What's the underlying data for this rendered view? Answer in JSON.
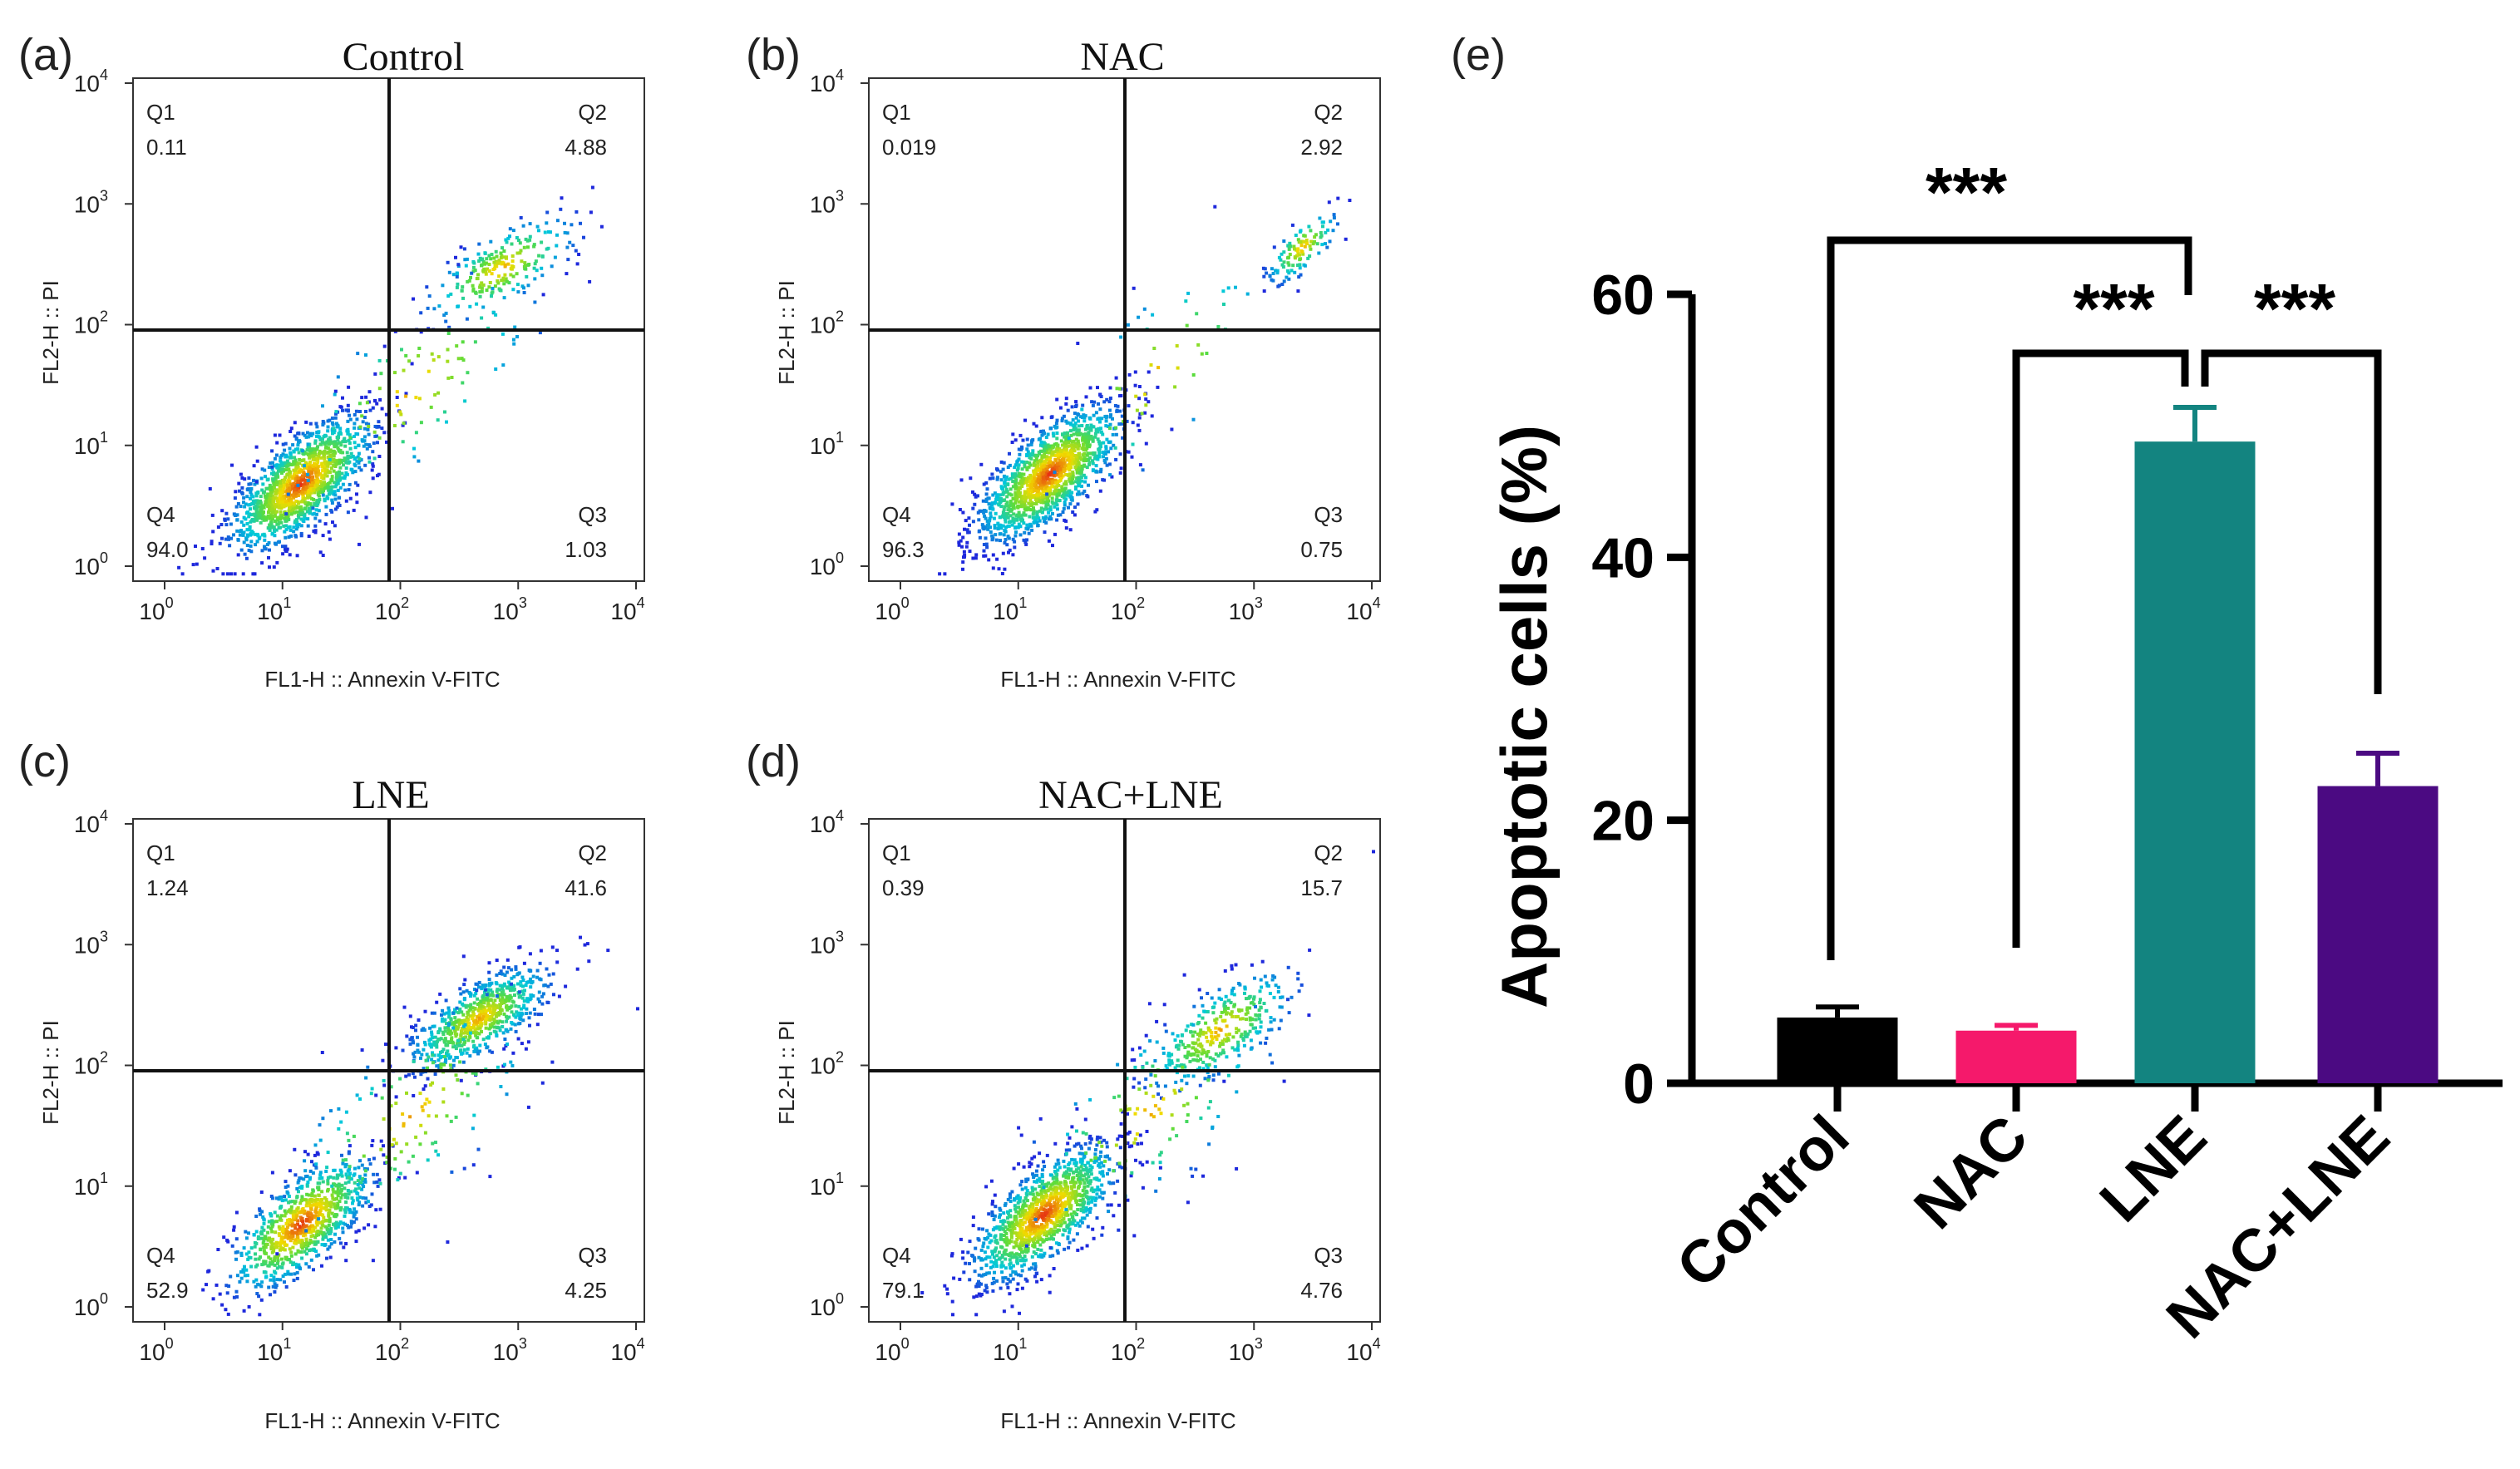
{
  "chart_data": [
    {
      "type": "scatter",
      "panel_label": "(a)",
      "title": "Control",
      "xlabel": "FL1-H :: Annexin V-FITC",
      "ylabel": "FL2-H :: PI",
      "scale": "log10",
      "xlim": [
        1,
        10000
      ],
      "ylim": [
        1,
        10000
      ],
      "gate": {
        "x": 100,
        "y": 100
      },
      "quadrants": [
        {
          "name": "Q1",
          "value": "0.11"
        },
        {
          "name": "Q2",
          "value": "4.88"
        },
        {
          "name": "Q3",
          "value": "1.03"
        },
        {
          "name": "Q4",
          "value": "94.0"
        }
      ],
      "populations": [
        {
          "cx": 14,
          "cy": 5,
          "sx": 0.3,
          "sy": 0.28,
          "n": 1400
        },
        {
          "cx": 700,
          "cy": 300,
          "sx": 0.32,
          "sy": 0.22,
          "n": 240
        },
        {
          "cx": 120,
          "cy": 30,
          "sx": 0.55,
          "sy": 0.5,
          "n": 110
        }
      ]
    },
    {
      "type": "scatter",
      "panel_label": "(b)",
      "title": "NAC",
      "xlabel": "FL1-H :: Annexin V-FITC",
      "ylabel": "FL2-H :: PI",
      "scale": "log10",
      "xlim": [
        1,
        10000
      ],
      "ylim": [
        1,
        10000
      ],
      "gate": {
        "x": 100,
        "y": 100
      },
      "quadrants": [
        {
          "name": "Q1",
          "value": "0.019"
        },
        {
          "name": "Q2",
          "value": "2.92"
        },
        {
          "name": "Q3",
          "value": "0.75"
        },
        {
          "name": "Q4",
          "value": "96.3"
        }
      ],
      "populations": [
        {
          "cx": 18,
          "cy": 6,
          "sx": 0.3,
          "sy": 0.28,
          "n": 1450
        },
        {
          "cx": 2500,
          "cy": 450,
          "sx": 0.15,
          "sy": 0.15,
          "n": 120
        },
        {
          "cx": 150,
          "cy": 40,
          "sx": 0.5,
          "sy": 0.5,
          "n": 50
        }
      ]
    },
    {
      "type": "scatter",
      "panel_label": "(c)",
      "title": "LNE",
      "xlabel": "FL1-H :: Annexin V-FITC",
      "ylabel": "FL2-H :: PI",
      "scale": "log10",
      "xlim": [
        1,
        10000
      ],
      "ylim": [
        1,
        10000
      ],
      "gate": {
        "x": 100,
        "y": 100
      },
      "quadrants": [
        {
          "name": "Q1",
          "value": "1.24"
        },
        {
          "name": "Q2",
          "value": "41.6"
        },
        {
          "name": "Q3",
          "value": "4.25"
        },
        {
          "name": "Q4",
          "value": "52.9"
        }
      ],
      "populations": [
        {
          "cx": 14,
          "cy": 5,
          "sx": 0.3,
          "sy": 0.28,
          "n": 850
        },
        {
          "cx": 450,
          "cy": 250,
          "sx": 0.3,
          "sy": 0.22,
          "n": 700
        },
        {
          "cx": 120,
          "cy": 40,
          "sx": 0.55,
          "sy": 0.5,
          "n": 180
        }
      ]
    },
    {
      "type": "scatter",
      "panel_label": "(d)",
      "title": "NAC+LNE",
      "xlabel": "FL1-H :: Annexin V-FITC",
      "ylabel": "FL2-H :: PI",
      "scale": "log10",
      "xlim": [
        1,
        10000
      ],
      "ylim": [
        1,
        10000
      ],
      "gate": {
        "x": 100,
        "y": 100
      },
      "quadrants": [
        {
          "name": "Q1",
          "value": "0.39"
        },
        {
          "name": "Q2",
          "value": "15.7"
        },
        {
          "name": "Q3",
          "value": "4.76"
        },
        {
          "name": "Q4",
          "value": "79.1"
        }
      ],
      "populations": [
        {
          "cx": 16,
          "cy": 6,
          "sx": 0.3,
          "sy": 0.28,
          "n": 1200
        },
        {
          "cx": 500,
          "cy": 200,
          "sx": 0.32,
          "sy": 0.25,
          "n": 350
        },
        {
          "cx": 120,
          "cy": 40,
          "sx": 0.55,
          "sy": 0.5,
          "n": 130
        }
      ]
    },
    {
      "type": "bar",
      "panel_label": "(e)",
      "title": "",
      "xlabel": "",
      "ylabel": "Apoptotic cells (%)",
      "ylim": [
        0,
        60
      ],
      "yticks": [
        0,
        20,
        40,
        60
      ],
      "categories": [
        "Control",
        "NAC",
        "LNE",
        "NAC+LNE"
      ],
      "values": [
        5.0,
        4.0,
        48.8,
        22.6
      ],
      "errors": [
        0.8,
        0.4,
        2.6,
        2.5
      ],
      "colors": [
        "#000000",
        "#f5196b",
        "#138480",
        "#4b0a82"
      ],
      "comparisons": [
        {
          "a": "Control",
          "b": "LNE",
          "label": "***"
        },
        {
          "a": "NAC",
          "b": "LNE",
          "label": "***"
        },
        {
          "a": "LNE",
          "b": "NAC+LNE",
          "label": "***"
        }
      ]
    }
  ]
}
